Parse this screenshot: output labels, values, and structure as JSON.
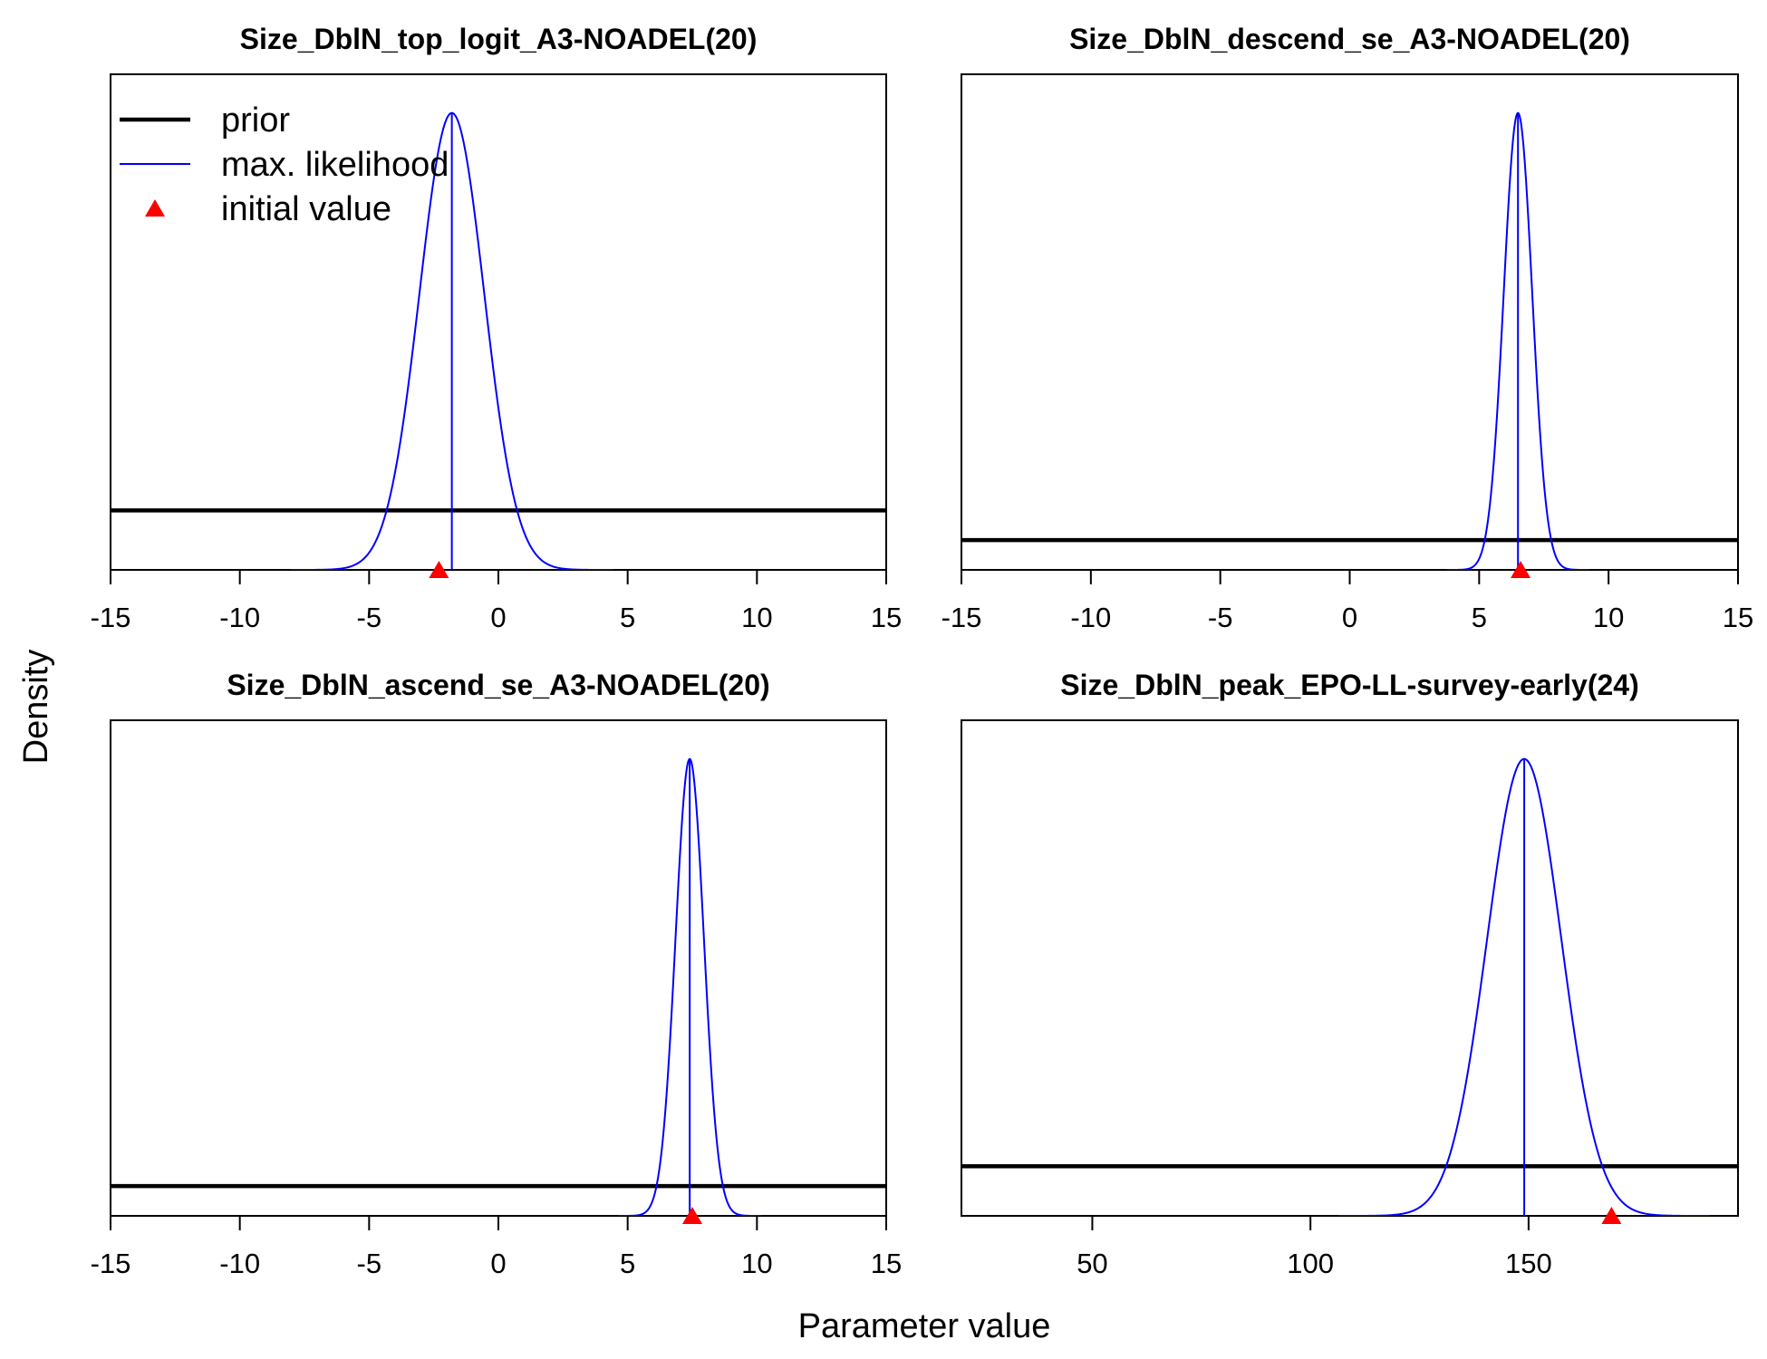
{
  "figure": {
    "xlabel": "Parameter value",
    "ylabel": "Density"
  },
  "legend": {
    "placement": "top-left",
    "entries": [
      {
        "label": "prior",
        "style": "line",
        "color": "#000000"
      },
      {
        "label": "max. likelihood",
        "style": "line",
        "color": "#0000ff"
      },
      {
        "label": "initial value",
        "style": "triangle",
        "color": "#ff0000"
      }
    ]
  },
  "colors": {
    "prior": "#000000",
    "mle": "#0000ff",
    "initial": "#ff0000"
  },
  "chart_data": [
    {
      "type": "line",
      "title": "Size_DblN_top_logit_A3-NOADEL(20)",
      "xlim": [
        -15,
        15
      ],
      "xticks": [
        -15,
        -10,
        -5,
        0,
        5,
        10,
        15
      ],
      "xtick_labels": [
        "-15",
        "-10",
        "-5",
        "0",
        "5",
        "10",
        "15"
      ],
      "prior": {
        "type": "uniform",
        "level": 0.12
      },
      "mle": {
        "mean": -1.8,
        "sd": 1.25
      },
      "initial_value": -2.3
    },
    {
      "type": "line",
      "title": "Size_DblN_descend_se_A3-NOADEL(20)",
      "xlim": [
        -15,
        15
      ],
      "xticks": [
        -15,
        -10,
        -5,
        0,
        5,
        10,
        15
      ],
      "xtick_labels": [
        "-15",
        "-10",
        "-5",
        "0",
        "5",
        "10",
        "15"
      ],
      "prior": {
        "type": "uniform",
        "level": 0.06
      },
      "mle": {
        "mean": 6.5,
        "sd": 0.55
      },
      "initial_value": 6.6
    },
    {
      "type": "line",
      "title": "Size_DblN_ascend_se_A3-NOADEL(20)",
      "xlim": [
        -15,
        15
      ],
      "xticks": [
        -15,
        -10,
        -5,
        0,
        5,
        10,
        15
      ],
      "xtick_labels": [
        "-15",
        "-10",
        "-5",
        "0",
        "5",
        "10",
        "15"
      ],
      "prior": {
        "type": "uniform",
        "level": 0.06
      },
      "mle": {
        "mean": 7.4,
        "sd": 0.55
      },
      "initial_value": 7.5
    },
    {
      "type": "line",
      "title": "Size_DblN_peak_EPO-LL-survey-early(24)",
      "xlim": [
        20,
        198
      ],
      "xticks": [
        50,
        100,
        150
      ],
      "xtick_labels": [
        "50",
        "100",
        "150"
      ],
      "prior": {
        "type": "uniform",
        "level": 0.1
      },
      "mle": {
        "mean": 149,
        "sd": 8.5
      },
      "initial_value": 169
    }
  ]
}
